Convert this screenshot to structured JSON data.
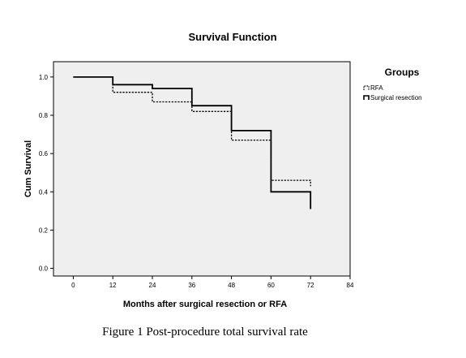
{
  "chart_data": {
    "type": "line",
    "step": true,
    "title": "Survival Function",
    "xlabel": "Months after surgical resection or RFA",
    "ylabel": "Cum Survival",
    "xlim": [
      -6,
      84
    ],
    "ylim": [
      -0.04,
      1.08
    ],
    "x_ticks": [
      0,
      12,
      24,
      36,
      48,
      60,
      72,
      84
    ],
    "y_ticks": [
      0.0,
      0.2,
      0.4,
      0.6,
      0.8,
      1.0
    ],
    "x_tick_labels": [
      "0",
      "12",
      "24",
      "36",
      "48",
      "60",
      "72",
      "84"
    ],
    "y_tick_labels": [
      "0.0",
      "0.2",
      "0.4",
      "0.6",
      "0.8",
      "1.0"
    ],
    "grid": false,
    "plot_background": "#efefef",
    "legend_title": "Groups",
    "legend_position": "right",
    "series": [
      {
        "name": "RFA",
        "style": "dashed",
        "color": "#000000",
        "points": [
          [
            0,
            1.0
          ],
          [
            12,
            0.92
          ],
          [
            24,
            0.87
          ],
          [
            36,
            0.82
          ],
          [
            48,
            0.67
          ],
          [
            60,
            0.46
          ],
          [
            72,
            0.43
          ]
        ]
      },
      {
        "name": "Surgical resection",
        "style": "solid",
        "color": "#000000",
        "points": [
          [
            0,
            1.0
          ],
          [
            12,
            0.96
          ],
          [
            24,
            0.94
          ],
          [
            36,
            0.85
          ],
          [
            48,
            0.72
          ],
          [
            60,
            0.4
          ],
          [
            72,
            0.31
          ]
        ]
      }
    ]
  },
  "caption": "Figure 1 Post-procedure total survival rate"
}
